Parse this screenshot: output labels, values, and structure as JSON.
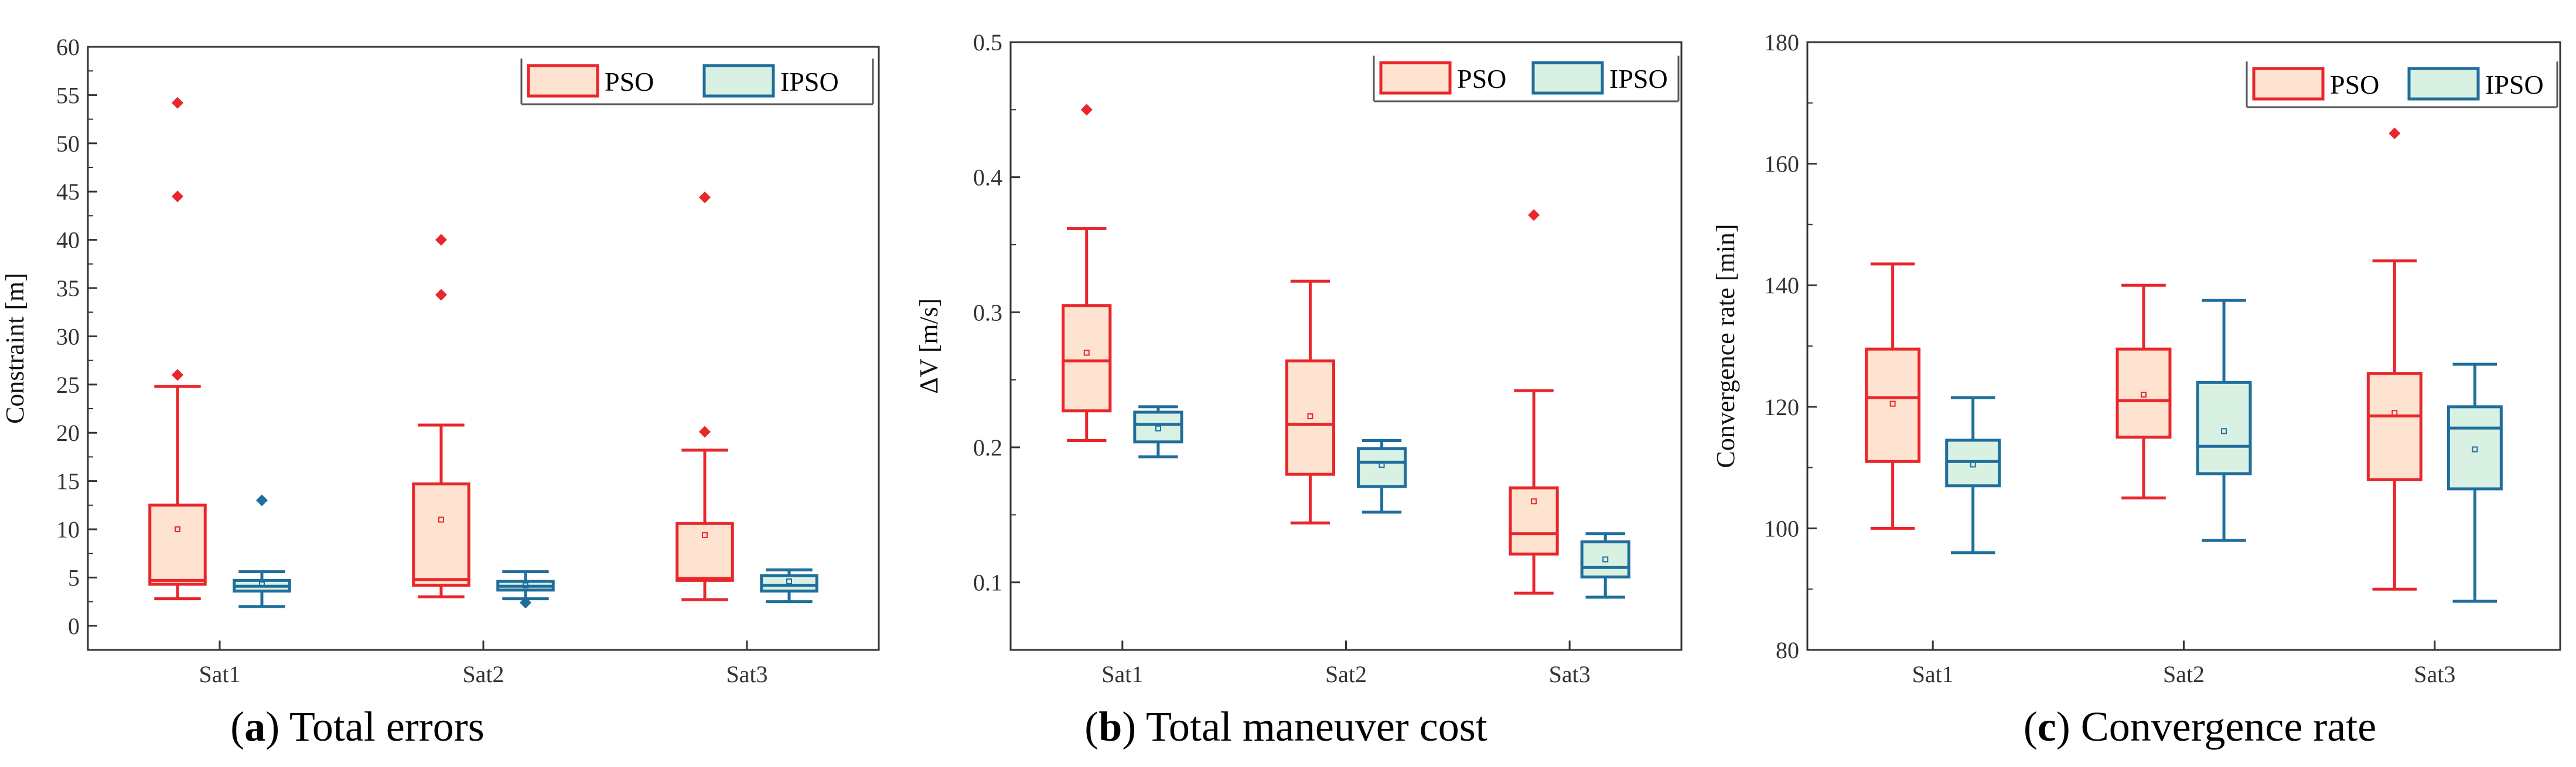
{
  "style": {
    "pso_stroke": "#e8262b",
    "pso_fill": "#fde3d0",
    "ipso_stroke": "#1f6e9c",
    "ipso_fill": "#d9f1e3",
    "axis_color": "#333333"
  },
  "chart_data": [
    {
      "type": "box",
      "caption_letter": "a",
      "caption_text": " Total errors",
      "xlabel": "",
      "ylabel": "Constraint [m]",
      "categories": [
        "Sat1",
        "Sat2",
        "Sat3"
      ],
      "ylim": [
        -2.5,
        60
      ],
      "yticks": [
        0,
        5,
        10,
        15,
        20,
        25,
        30,
        35,
        40,
        45,
        50,
        55,
        60
      ],
      "legend_position": "top-right",
      "series": [
        {
          "name": "PSO",
          "boxes": [
            {
              "whisker_low": 2.8,
              "q1": 4.3,
              "median": 4.7,
              "q3": 12.5,
              "whisker_high": 24.8,
              "mean": 10.0,
              "outliers": [
                26.0,
                44.5,
                54.2
              ]
            },
            {
              "whisker_low": 3.0,
              "q1": 4.2,
              "median": 4.8,
              "q3": 14.7,
              "whisker_high": 20.8,
              "mean": 11.0,
              "outliers": [
                34.3,
                40.0
              ]
            },
            {
              "whisker_low": 2.7,
              "q1": 4.7,
              "median": 4.9,
              "q3": 10.6,
              "whisker_high": 18.2,
              "mean": 9.4,
              "outliers": [
                20.1,
                44.4
              ]
            }
          ]
        },
        {
          "name": "IPSO",
          "boxes": [
            {
              "whisker_low": 2.0,
              "q1": 3.6,
              "median": 4.1,
              "q3": 4.7,
              "whisker_high": 5.6,
              "mean": 4.3,
              "outliers": [
                13.0
              ]
            },
            {
              "whisker_low": 2.8,
              "q1": 3.7,
              "median": 4.1,
              "q3": 4.6,
              "whisker_high": 5.6,
              "mean": 4.2,
              "outliers": [
                2.4
              ]
            },
            {
              "whisker_low": 2.5,
              "q1": 3.6,
              "median": 4.2,
              "q3": 5.2,
              "whisker_high": 5.8,
              "mean": 4.6,
              "outliers": []
            }
          ]
        }
      ]
    },
    {
      "type": "box",
      "caption_letter": "b",
      "caption_text": " Total maneuver cost",
      "xlabel": "",
      "ylabel": "ΔV [m/s]",
      "categories": [
        "Sat1",
        "Sat2",
        "Sat3"
      ],
      "ylim": [
        0.05,
        0.5
      ],
      "yticks": [
        0.1,
        0.2,
        0.3,
        0.4,
        0.5
      ],
      "legend_position": "top-right",
      "series": [
        {
          "name": "PSO",
          "boxes": [
            {
              "whisker_low": 0.205,
              "q1": 0.227,
              "median": 0.264,
              "q3": 0.305,
              "whisker_high": 0.362,
              "mean": 0.27,
              "outliers": [
                0.45
              ]
            },
            {
              "whisker_low": 0.144,
              "q1": 0.18,
              "median": 0.217,
              "q3": 0.264,
              "whisker_high": 0.323,
              "mean": 0.223,
              "outliers": []
            },
            {
              "whisker_low": 0.092,
              "q1": 0.121,
              "median": 0.136,
              "q3": 0.17,
              "whisker_high": 0.242,
              "mean": 0.16,
              "outliers": [
                0.372
              ]
            }
          ]
        },
        {
          "name": "IPSO",
          "boxes": [
            {
              "whisker_low": 0.193,
              "q1": 0.204,
              "median": 0.217,
              "q3": 0.226,
              "whisker_high": 0.23,
              "mean": 0.214,
              "outliers": []
            },
            {
              "whisker_low": 0.152,
              "q1": 0.171,
              "median": 0.189,
              "q3": 0.199,
              "whisker_high": 0.205,
              "mean": 0.187,
              "outliers": []
            },
            {
              "whisker_low": 0.089,
              "q1": 0.104,
              "median": 0.111,
              "q3": 0.13,
              "whisker_high": 0.136,
              "mean": 0.117,
              "outliers": []
            }
          ]
        }
      ]
    },
    {
      "type": "box",
      "caption_letter": "c",
      "caption_text": " Convergence rate",
      "xlabel": "",
      "ylabel": "Convergence rate [min]",
      "categories": [
        "Sat1",
        "Sat2",
        "Sat3"
      ],
      "ylim": [
        80,
        180
      ],
      "yticks": [
        80,
        100,
        120,
        140,
        160,
        180
      ],
      "legend_position": "top-right",
      "series": [
        {
          "name": "PSO",
          "boxes": [
            {
              "whisker_low": 100,
              "q1": 111,
              "median": 121.5,
              "q3": 129.5,
              "whisker_high": 143.5,
              "mean": 120.5,
              "outliers": []
            },
            {
              "whisker_low": 105,
              "q1": 115,
              "median": 121,
              "q3": 129.5,
              "whisker_high": 140,
              "mean": 122,
              "outliers": []
            },
            {
              "whisker_low": 90,
              "q1": 108,
              "median": 118.5,
              "q3": 125.5,
              "whisker_high": 144,
              "mean": 119,
              "outliers": [
                165
              ]
            }
          ]
        },
        {
          "name": "IPSO",
          "boxes": [
            {
              "whisker_low": 96,
              "q1": 107,
              "median": 111,
              "q3": 114.5,
              "whisker_high": 121.5,
              "mean": 110.5,
              "outliers": []
            },
            {
              "whisker_low": 98,
              "q1": 109,
              "median": 113.5,
              "q3": 124,
              "whisker_high": 137.5,
              "mean": 116,
              "outliers": []
            },
            {
              "whisker_low": 88,
              "q1": 106.5,
              "median": 116.5,
              "q3": 120,
              "whisker_high": 127,
              "mean": 113,
              "outliers": []
            }
          ]
        }
      ]
    }
  ]
}
